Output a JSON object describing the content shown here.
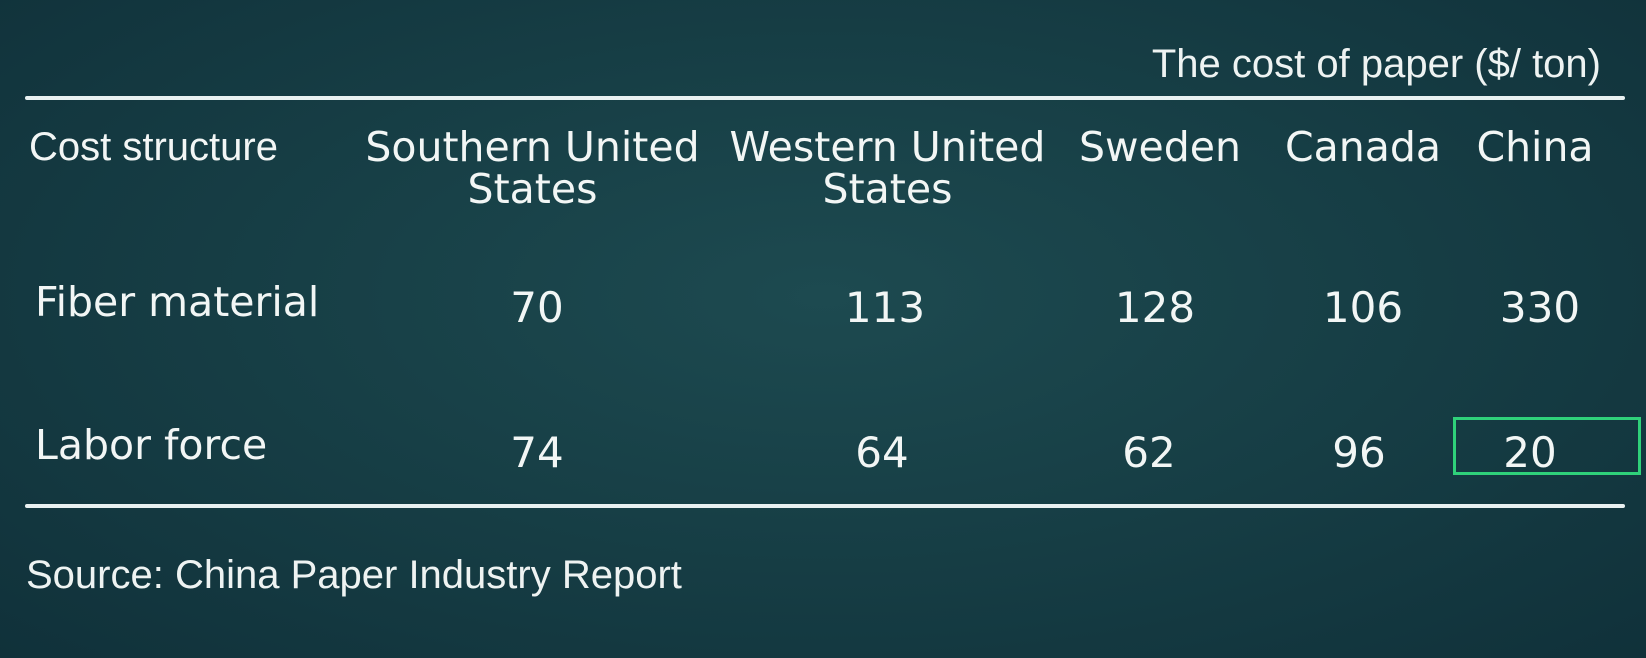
{
  "chart_data": {
    "type": "table",
    "title": "The cost of paper ($/ ton)",
    "columns": [
      "Cost structure",
      "Southern United States",
      "Western United States",
      "Sweden",
      "Canada",
      "China"
    ],
    "column_lines": [
      [
        "Cost structure"
      ],
      [
        "Southern United",
        "States"
      ],
      [
        "Western United",
        "States"
      ],
      [
        "Sweden"
      ],
      [
        "Canada"
      ],
      [
        "China"
      ]
    ],
    "rows": [
      {
        "label": "Fiber material",
        "values": [
          "70",
          "113",
          "128",
          "106",
          "330"
        ]
      },
      {
        "label": "Labor force",
        "values": [
          "74",
          "64",
          "62",
          "96",
          "20"
        ]
      }
    ],
    "highlighted_cell": {
      "row": 1,
      "column": 4
    },
    "highlight_color": "#2fd17a",
    "source": "Source: China Paper Industry Report"
  },
  "colors": {
    "background": "#173f46",
    "text": "#f2f6f5",
    "rule": "#e9f1f1"
  }
}
